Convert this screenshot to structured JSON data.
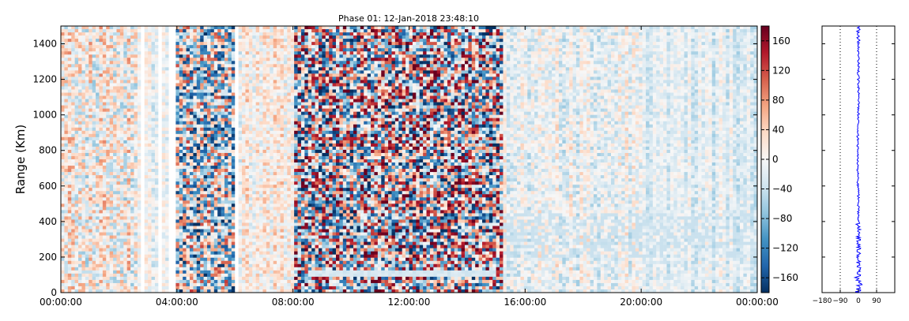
{
  "chart_data": [
    {
      "type": "heatmap",
      "title": "Phase 01: 12-Jan-2018 23:48:10",
      "ylabel": "Range (Km)",
      "xlabel": "",
      "x_ticks": [
        "00:00:00",
        "04:00:00",
        "08:00:00",
        "12:00:00",
        "16:00:00",
        "20:00:00",
        "00:00:00"
      ],
      "y_ticks": [
        "0",
        "200",
        "400",
        "600",
        "800",
        "1000",
        "1200",
        "1400"
      ],
      "x_range_hours": [
        0,
        24
      ],
      "y_range_km": [
        0,
        1500
      ],
      "grid": false,
      "colormap": "RdBu_r",
      "colorbar": {
        "range": [
          -180,
          180
        ],
        "ticks": [
          "-160",
          "-120",
          "-80",
          "-40",
          "0",
          "40",
          "80",
          "120",
          "160"
        ],
        "colors": [
          "#053061",
          "#2166ac",
          "#4393c3",
          "#92c5de",
          "#d1e5f0",
          "#f7f7f7",
          "#fddbc7",
          "#f4a582",
          "#d6604d",
          "#b2182b",
          "#67001f"
        ]
      },
      "noisy_intervals_hours": [
        [
          3.9,
          6.1
        ],
        [
          8.0,
          15.2
        ]
      ],
      "blank_columns_hours": [
        2.8,
        3.4,
        3.85,
        6.05
      ]
    },
    {
      "type": "line",
      "title": "",
      "xlabel": "",
      "ylabel": "",
      "xlim": [
        -180,
        180
      ],
      "ylim": [
        0,
        1500
      ],
      "x_ticks": [
        "−180",
        "−90",
        "0",
        "90"
      ],
      "x_tick_values": [
        -180,
        -90,
        0,
        90
      ],
      "reference_lines_x": [
        -90,
        90
      ],
      "line_color": "#0000ff",
      "note_profile": "mean phase vs range, near 0 with larger scatter below 400 Km"
    }
  ]
}
